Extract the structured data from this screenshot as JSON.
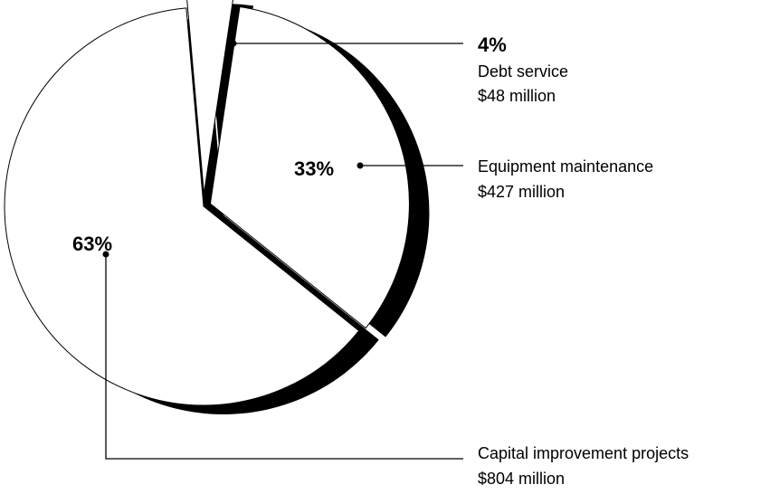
{
  "chart_data": {
    "type": "pie",
    "title": "",
    "slices": [
      {
        "name": "Debt service",
        "value": 48,
        "percent_label": "4%",
        "amount_label": "$48 million"
      },
      {
        "name": "Equipment maintenance",
        "value": 427,
        "percent_label": "33%",
        "amount_label": "$427 million"
      },
      {
        "name": "Capital improvement projects",
        "value": 804,
        "percent_label": "63%",
        "amount_label": "$804 million"
      }
    ],
    "colors": {
      "fill": "#ffffff",
      "stroke": "#000000",
      "shadow": "#000000"
    }
  }
}
